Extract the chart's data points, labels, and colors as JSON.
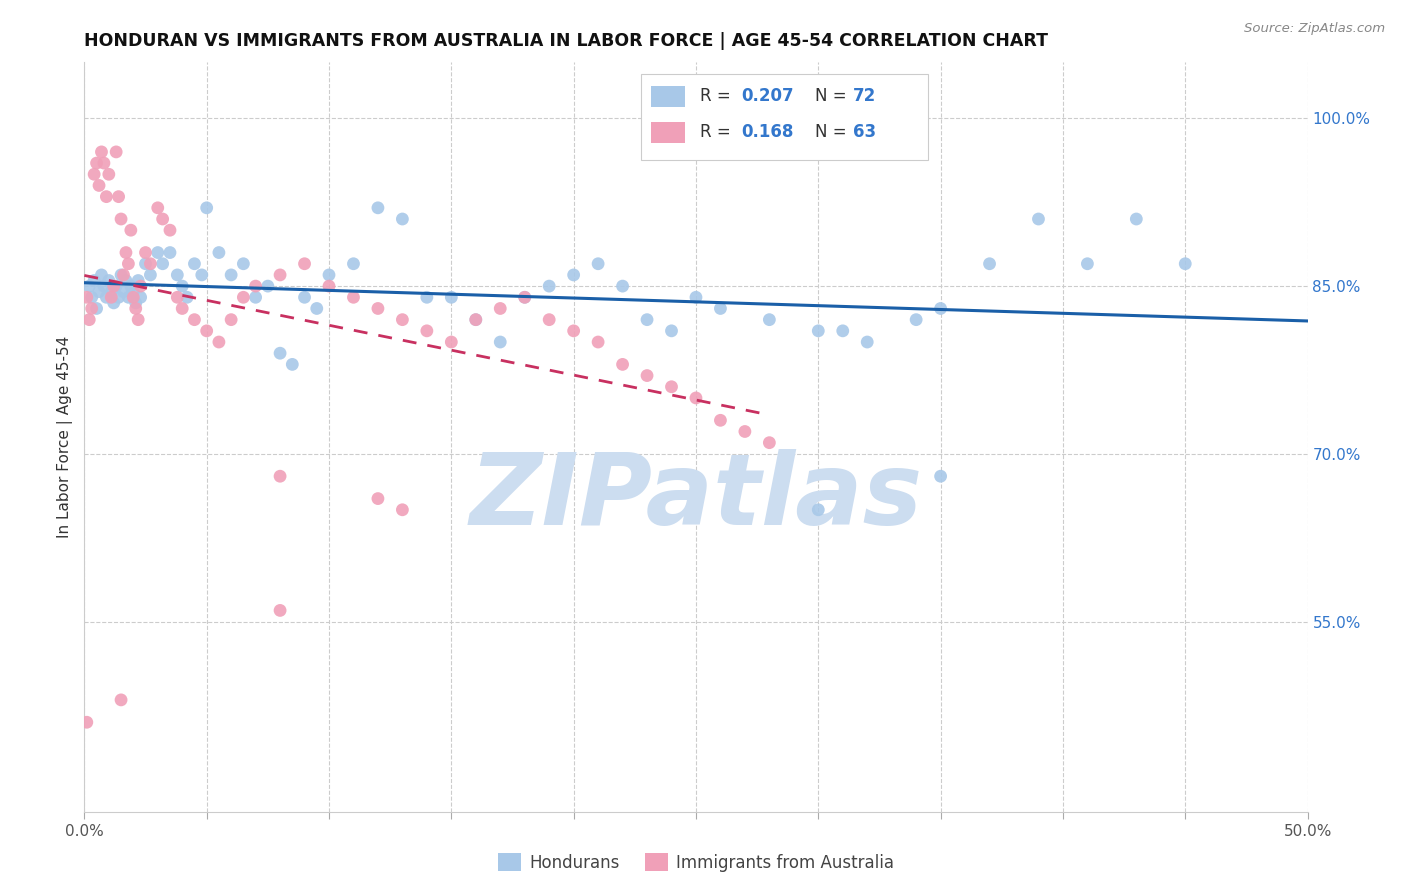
{
  "title": "HONDURAN VS IMMIGRANTS FROM AUSTRALIA IN LABOR FORCE | AGE 45-54 CORRELATION CHART",
  "source": "Source: ZipAtlas.com",
  "ylabel": "In Labor Force | Age 45-54",
  "xlim": [
    0.0,
    0.5
  ],
  "ylim": [
    0.38,
    1.05
  ],
  "blue_R": 0.207,
  "blue_N": 72,
  "pink_R": 0.168,
  "pink_N": 63,
  "blue_color": "#a8c8e8",
  "pink_color": "#f0a0b8",
  "blue_line_color": "#1a5fa8",
  "pink_line_color": "#c83060",
  "watermark_color": "#ccddf0",
  "grid_color": "#cccccc",
  "background_color": "#ffffff",
  "blue_x": [
    0.002,
    0.003,
    0.004,
    0.005,
    0.006,
    0.007,
    0.008,
    0.009,
    0.01,
    0.011,
    0.012,
    0.013,
    0.014,
    0.015,
    0.016,
    0.017,
    0.018,
    0.019,
    0.02,
    0.021,
    0.022,
    0.023,
    0.025,
    0.027,
    0.03,
    0.032,
    0.035,
    0.038,
    0.04,
    0.042,
    0.045,
    0.048,
    0.05,
    0.055,
    0.06,
    0.065,
    0.07,
    0.075,
    0.08,
    0.085,
    0.09,
    0.095,
    0.1,
    0.11,
    0.12,
    0.13,
    0.14,
    0.15,
    0.16,
    0.17,
    0.18,
    0.19,
    0.2,
    0.21,
    0.22,
    0.23,
    0.24,
    0.25,
    0.26,
    0.28,
    0.3,
    0.31,
    0.32,
    0.34,
    0.35,
    0.37,
    0.39,
    0.41,
    0.43,
    0.45,
    0.3,
    0.35
  ],
  "blue_y": [
    0.85,
    0.84,
    0.855,
    0.83,
    0.845,
    0.86,
    0.85,
    0.84,
    0.855,
    0.845,
    0.835,
    0.85,
    0.84,
    0.86,
    0.845,
    0.855,
    0.84,
    0.85,
    0.845,
    0.835,
    0.855,
    0.84,
    0.87,
    0.86,
    0.88,
    0.87,
    0.88,
    0.86,
    0.85,
    0.84,
    0.87,
    0.86,
    0.92,
    0.88,
    0.86,
    0.87,
    0.84,
    0.85,
    0.79,
    0.78,
    0.84,
    0.83,
    0.86,
    0.87,
    0.92,
    0.91,
    0.84,
    0.84,
    0.82,
    0.8,
    0.84,
    0.85,
    0.86,
    0.87,
    0.85,
    0.82,
    0.81,
    0.84,
    0.83,
    0.82,
    0.81,
    0.81,
    0.8,
    0.82,
    0.83,
    0.87,
    0.91,
    0.87,
    0.91,
    0.87,
    0.65,
    0.68
  ],
  "pink_x": [
    0.001,
    0.002,
    0.003,
    0.004,
    0.005,
    0.006,
    0.007,
    0.008,
    0.009,
    0.01,
    0.011,
    0.012,
    0.013,
    0.014,
    0.015,
    0.016,
    0.017,
    0.018,
    0.019,
    0.02,
    0.021,
    0.022,
    0.023,
    0.025,
    0.027,
    0.03,
    0.032,
    0.035,
    0.038,
    0.04,
    0.045,
    0.05,
    0.055,
    0.06,
    0.065,
    0.07,
    0.08,
    0.09,
    0.1,
    0.11,
    0.12,
    0.13,
    0.14,
    0.15,
    0.16,
    0.17,
    0.18,
    0.19,
    0.2,
    0.21,
    0.22,
    0.23,
    0.24,
    0.25,
    0.26,
    0.27,
    0.28,
    0.12,
    0.13,
    0.08,
    0.001,
    0.015,
    0.08
  ],
  "pink_y": [
    0.84,
    0.82,
    0.83,
    0.95,
    0.96,
    0.94,
    0.97,
    0.96,
    0.93,
    0.95,
    0.84,
    0.85,
    0.97,
    0.93,
    0.91,
    0.86,
    0.88,
    0.87,
    0.9,
    0.84,
    0.83,
    0.82,
    0.85,
    0.88,
    0.87,
    0.92,
    0.91,
    0.9,
    0.84,
    0.83,
    0.82,
    0.81,
    0.8,
    0.82,
    0.84,
    0.85,
    0.86,
    0.87,
    0.85,
    0.84,
    0.83,
    0.82,
    0.81,
    0.8,
    0.82,
    0.83,
    0.84,
    0.82,
    0.81,
    0.8,
    0.78,
    0.77,
    0.76,
    0.75,
    0.73,
    0.72,
    0.71,
    0.66,
    0.65,
    0.68,
    0.46,
    0.48,
    0.56
  ]
}
